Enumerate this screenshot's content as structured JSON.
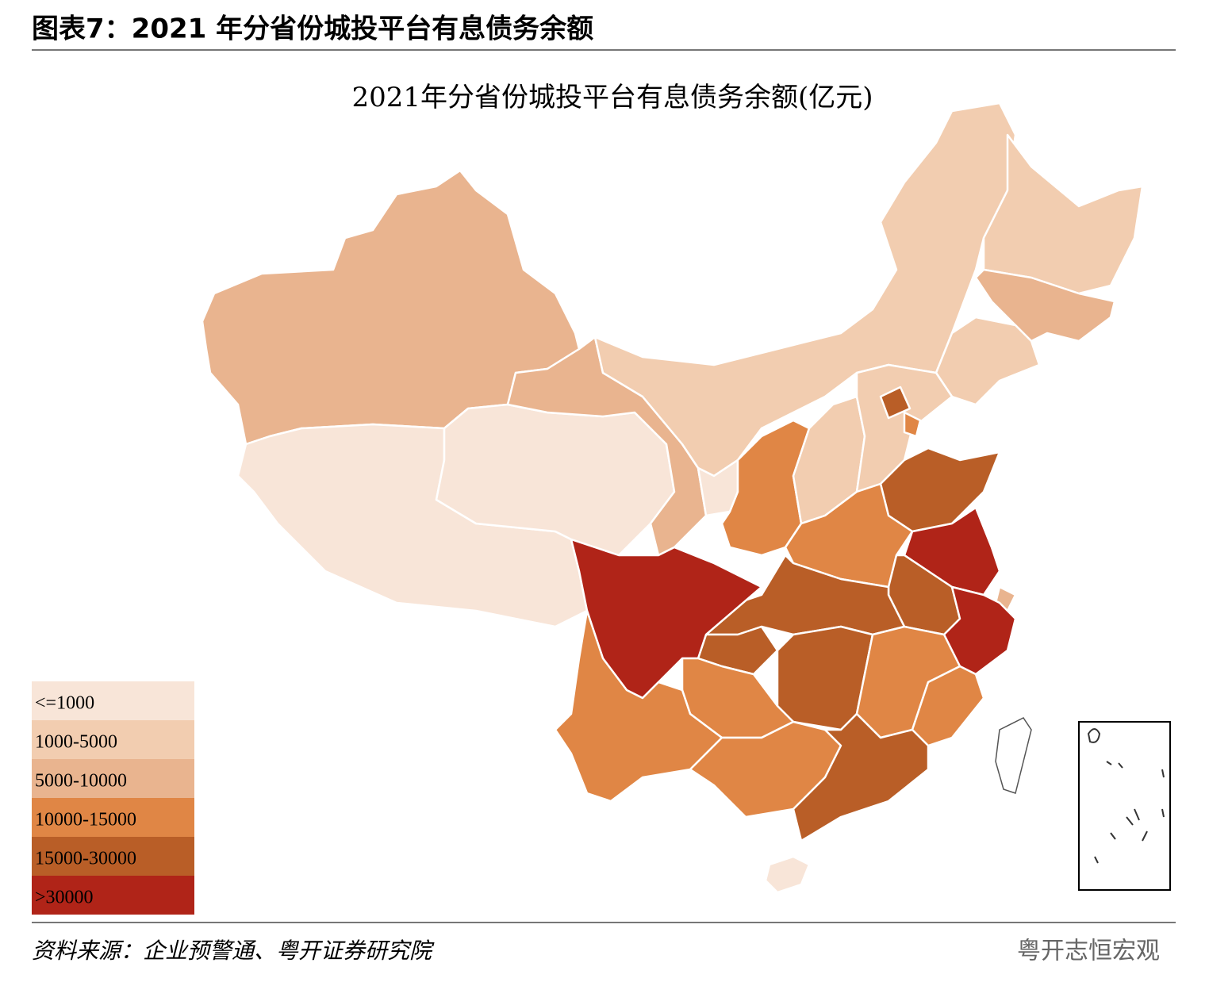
{
  "header": {
    "title": "图表7：2021 年分省份城投平台有息债务余额"
  },
  "map": {
    "title": "2021年分省份城投平台有息债务余额(亿元)"
  },
  "legend": {
    "items": [
      {
        "label": "<=1000",
        "color": "#f8e5d8"
      },
      {
        "label": "1000-5000",
        "color": "#f2cdb0"
      },
      {
        "label": "5000-10000",
        "color": "#e9b48f"
      },
      {
        "label": "10000-15000",
        "color": "#e08645"
      },
      {
        "label": "15000-30000",
        "color": "#b95e27"
      },
      {
        "label": ">30000",
        "color": "#b02418"
      }
    ]
  },
  "footer": {
    "source": "资料来源：企业预警通、粤开证券研究院",
    "watermark": "粤开志恒宏观"
  }
}
